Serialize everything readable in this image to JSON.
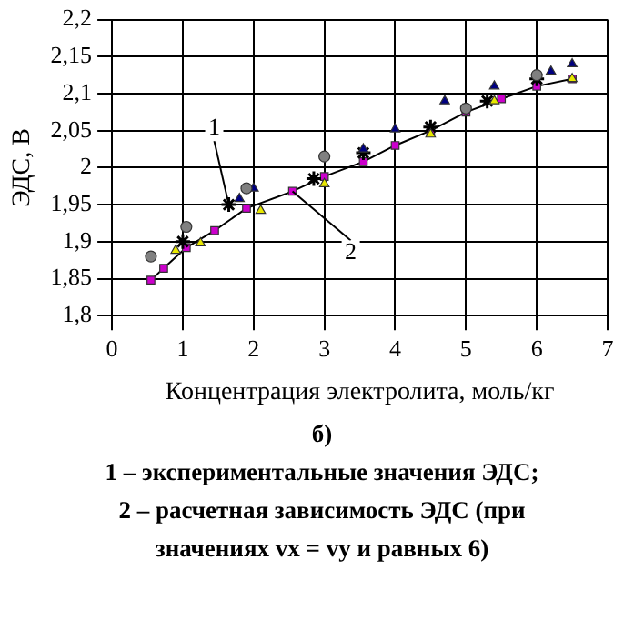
{
  "chart_data": {
    "type": "scatter",
    "xlabel": "Концентрация электролита, моль/кг",
    "ylabel": "ЭДС, В",
    "xlim": [
      0,
      7
    ],
    "xticks": [
      0,
      1,
      2,
      3,
      4,
      5,
      6,
      7
    ],
    "ylim": [
      1.8,
      2.2
    ],
    "yticks": [
      {
        "value": 1.8,
        "label": "1,8"
      },
      {
        "value": 1.85,
        "label": "1,85"
      },
      {
        "value": 1.9,
        "label": "1,9"
      },
      {
        "value": 1.95,
        "label": "1,95"
      },
      {
        "value": 2,
        "label": "2"
      },
      {
        "value": 2.05,
        "label": "2,05"
      },
      {
        "value": 2.1,
        "label": "2,1"
      },
      {
        "value": 2.15,
        "label": "2,15"
      },
      {
        "value": 2.2,
        "label": "2,2"
      }
    ],
    "grid": true,
    "legend": false,
    "series": [
      {
        "type": "line",
        "color": "#000000",
        "marker": "square",
        "x": [
          0.55,
          0.73,
          1.05,
          1.45,
          1.9,
          2.55,
          3.0,
          3.55,
          4.0,
          4.5,
          5.0,
          5.5,
          6.0,
          6.5
        ],
        "values": [
          1.848,
          1.864,
          1.892,
          1.915,
          1.945,
          1.968,
          1.988,
          2.008,
          2.03,
          2.05,
          2.075,
          2.093,
          2.11,
          2.12
        ]
      },
      {
        "color": "#808080",
        "marker": "circle",
        "x": [
          0.55,
          1.05,
          1.9,
          3.0,
          5.0,
          6.0
        ],
        "values": [
          1.88,
          1.92,
          1.972,
          2.015,
          2.08,
          2.125
        ]
      },
      {
        "color": "#000080",
        "marker": "triangle",
        "x": [
          1.8,
          2.0,
          3.55,
          4.0,
          4.7,
          5.4,
          6.2,
          6.5
        ],
        "values": [
          1.958,
          1.972,
          2.025,
          2.052,
          2.09,
          2.11,
          2.13,
          2.14
        ]
      },
      {
        "color": "#e8e800",
        "marker": "triangle",
        "x": [
          0.9,
          1.25,
          2.1,
          3.0,
          4.5,
          5.4,
          6.5
        ],
        "values": [
          1.888,
          1.898,
          1.942,
          1.978,
          2.045,
          2.09,
          2.12
        ]
      },
      {
        "color": "#000000",
        "marker": "cross",
        "x": [
          1.0,
          1.65,
          2.85,
          3.55,
          4.5,
          5.3,
          6.0
        ],
        "values": [
          1.9,
          1.95,
          1.985,
          2.02,
          2.055,
          2.09,
          2.12
        ]
      }
    ],
    "annotations": [
      {
        "text": "1",
        "x": 1.65,
        "y": 1.95
      },
      {
        "text": "2",
        "x": 2.55,
        "y": 1.968
      },
      "б)",
      "1 – экспериментальные значения ЭДС;",
      "2 – расчетная зависимость ЭДС (при значениях vx = vy и равных 6)"
    ]
  }
}
